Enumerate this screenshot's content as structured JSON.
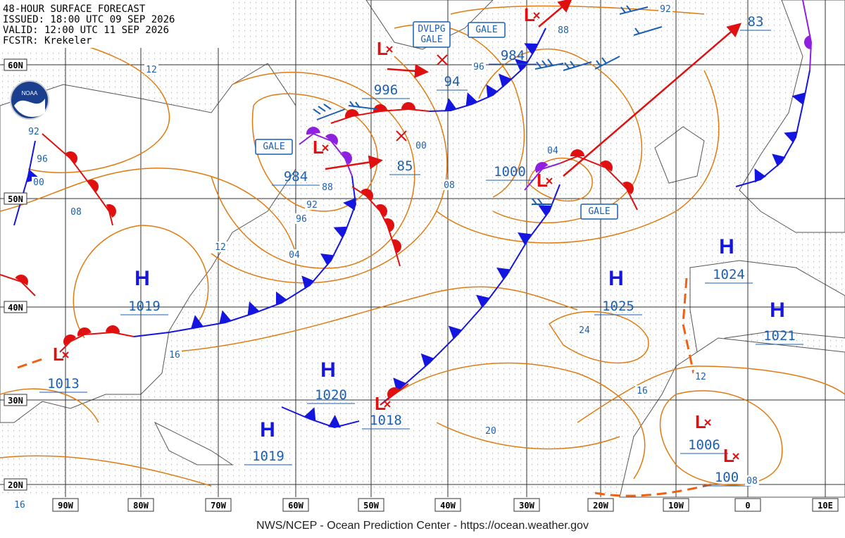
{
  "header": {
    "title": "48-HOUR SURFACE FORECAST",
    "issued": "ISSUED: 18:00 UTC 09 SEP 2026",
    "valid": "VALID: 12:00 UTC 11 SEP 2026",
    "forecaster": "FCSTR: Krekeler"
  },
  "logo": "NOAA",
  "latitude_labels": [
    "60N",
    "50N",
    "40N",
    "30N",
    "20N"
  ],
  "longitude_labels": [
    "90W",
    "80W",
    "70W",
    "60W",
    "50W",
    "40W",
    "30W",
    "20W",
    "10W",
    "0",
    "10E"
  ],
  "pressure_centers": [
    {
      "symbol": "L",
      "pressure": "1013"
    },
    {
      "symbol": "H",
      "pressure": "1019"
    },
    {
      "symbol": "H",
      "pressure": "1020"
    },
    {
      "symbol": "L",
      "pressure": "1018"
    },
    {
      "symbol": "H",
      "pressure": "1019"
    },
    {
      "symbol": "L",
      "pressure": "984"
    },
    {
      "symbol": "L",
      "pressure": "996"
    },
    {
      "symbol": "L",
      "pressure": "1000"
    },
    {
      "symbol": "L",
      "pressure": "984"
    },
    {
      "symbol": "H",
      "pressure": "1025"
    },
    {
      "symbol": "H",
      "pressure": "1024"
    },
    {
      "symbol": "H",
      "pressure": "1021"
    },
    {
      "symbol": "L",
      "pressure": "1006"
    },
    {
      "symbol": "L",
      "pressure": "100"
    }
  ],
  "forecast_positions": [
    "94",
    "85",
    "83"
  ],
  "isobar_labels": [
    "12",
    "92",
    "96",
    "00",
    "08",
    "12",
    "88",
    "92",
    "96",
    "04",
    "00",
    "08",
    "96",
    "88",
    "92",
    "04",
    "24",
    "16",
    "20",
    "16",
    "12",
    "08",
    "16"
  ],
  "warnings": [
    [
      "GALE"
    ],
    [
      "DVLPG",
      "GALE"
    ],
    [
      "GALE"
    ],
    [
      "GALE"
    ]
  ],
  "footer": "NWS/NCEP - Ocean Prediction Center - https://ocean.weather.gov"
}
